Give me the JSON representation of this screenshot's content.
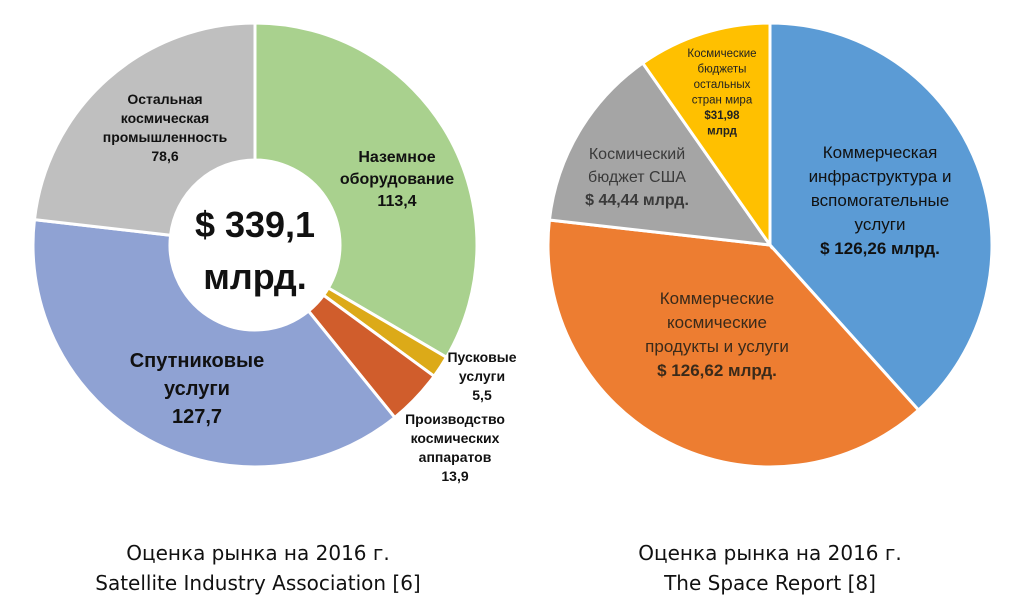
{
  "colors": {
    "ground": "#a9d18e",
    "launch": "#dcaa18",
    "manufacturing": "#d05d2c",
    "satellite": "#8fa2d3",
    "rest": "#bfbfbf",
    "commercial_infra": "#5b9bd5",
    "commercial_products": "#ed7d31",
    "us_budget": "#a5a5a5",
    "other_budgets": "#ffc000",
    "separator": "#ffffff"
  },
  "chart_data": [
    {
      "type": "pie",
      "variant": "donut",
      "center_text": [
        "$ 339,1",
        "млрд."
      ],
      "caption": [
        "Оценка рынка на 2016 г.",
        "Satellite Industry Association [6]"
      ],
      "slices": [
        {
          "key": "ground",
          "lines": [
            "Наземное",
            "оборудование",
            "113,4"
          ],
          "value": 113.4
        },
        {
          "key": "launch",
          "lines": [
            "Пусковые",
            "услуги",
            "5,5"
          ],
          "value": 5.5
        },
        {
          "key": "manufacturing",
          "lines": [
            "Производство",
            "космических",
            "аппаратов",
            "13,9"
          ],
          "value": 13.9
        },
        {
          "key": "satellite",
          "lines": [
            "Спутниковые",
            "услуги",
            "127,7"
          ],
          "value": 127.7
        },
        {
          "key": "rest",
          "lines": [
            "Остальная",
            "космическая",
            "промышленность",
            "78,6"
          ],
          "value": 78.6
        }
      ]
    },
    {
      "type": "pie",
      "caption": [
        "Оценка рынка на 2016 г.",
        "The Space Report [8]"
      ],
      "slices": [
        {
          "key": "commercial_infra",
          "lines": [
            "Коммерческая",
            "инфраструктура и",
            "вспомогательные",
            "услуги",
            "$ 126,26 млрд."
          ],
          "value": 126.26
        },
        {
          "key": "commercial_products",
          "lines": [
            "Коммерческие",
            "космические",
            "продукты и услуги",
            "$ 126,62 млрд."
          ],
          "value": 126.62
        },
        {
          "key": "us_budget",
          "lines": [
            "Космический",
            "бюджет США",
            "$ 44,44 млрд."
          ],
          "value": 44.44
        },
        {
          "key": "other_budgets",
          "lines": [
            "Космические",
            "бюджеты",
            "остальных",
            "стран мира",
            "$31,98",
            "млрд"
          ],
          "value": 31.98
        }
      ]
    }
  ]
}
